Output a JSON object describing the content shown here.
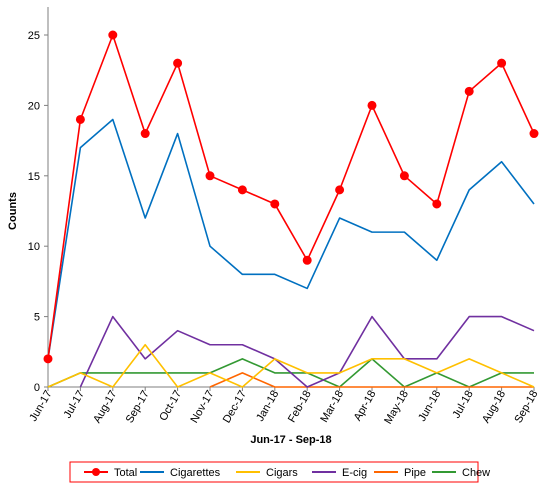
{
  "chart_data": {
    "type": "line",
    "title": "",
    "xlabel": "Jun-17 - Sep-18",
    "ylabel": "Counts",
    "ylim": [
      0,
      25
    ],
    "yticks": [
      0,
      5,
      10,
      15,
      20,
      25
    ],
    "grid": false,
    "legend_position": "bottom",
    "categories": [
      "Jun-17",
      "Jul-17",
      "Aug-17",
      "Sep-17",
      "Oct-17",
      "Nov-17",
      "Dec-17",
      "Jan-18",
      "Feb-18",
      "Mar-18",
      "Apr-18",
      "May-18",
      "Jun-18",
      "Jul-18",
      "Aug-18",
      "Sep-18"
    ],
    "series": [
      {
        "name": "Total",
        "color": "#ff0000",
        "markers": true,
        "values": [
          2,
          19,
          25,
          18,
          23,
          15,
          14,
          13,
          9,
          14,
          20,
          15,
          13,
          21,
          23,
          18
        ]
      },
      {
        "name": "Cigarettes",
        "color": "#0070c0",
        "markers": false,
        "values": [
          2,
          17,
          19,
          12,
          18,
          10,
          8,
          8,
          7,
          12,
          11,
          11,
          9,
          14,
          16,
          13
        ]
      },
      {
        "name": "Cigars",
        "color": "#ffc000",
        "markers": false,
        "values": [
          0,
          1,
          0,
          3,
          0,
          1,
          0,
          2,
          1,
          1,
          2,
          2,
          1,
          2,
          1,
          0
        ]
      },
      {
        "name": "E-cig",
        "color": "#7030a0",
        "markers": false,
        "values": [
          null,
          0,
          5,
          2,
          4,
          3,
          3,
          2,
          0,
          1,
          5,
          2,
          2,
          5,
          5,
          4
        ]
      },
      {
        "name": "Pipe",
        "color": "#ff6600",
        "markers": false,
        "values": [
          null,
          null,
          null,
          null,
          null,
          0,
          1,
          0,
          0,
          0,
          0,
          0,
          0,
          0,
          0,
          0
        ]
      },
      {
        "name": "Chew",
        "color": "#339933",
        "markers": false,
        "values": [
          0,
          1,
          1,
          1,
          1,
          1,
          2,
          1,
          1,
          0,
          2,
          0,
          1,
          0,
          1,
          1
        ]
      }
    ]
  }
}
